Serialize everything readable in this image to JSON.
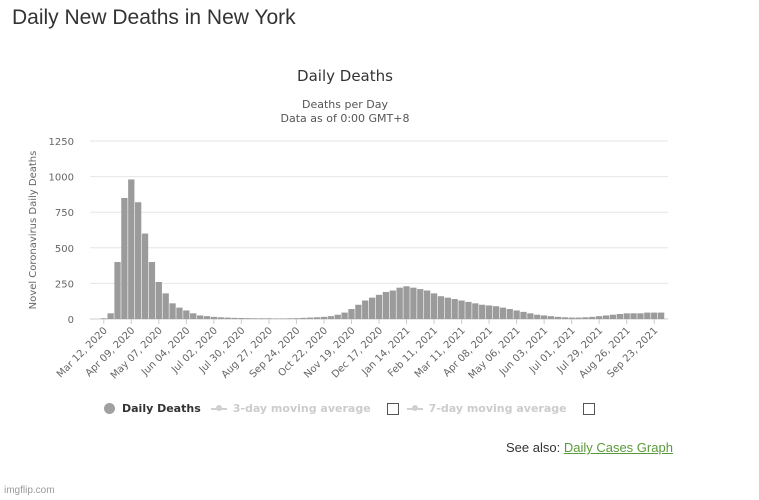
{
  "page": {
    "title": "Daily New Deaths in New York",
    "see_also_prefix": "See also:",
    "see_also_link": "Daily Cases Graph",
    "watermark": "imgflip.com"
  },
  "legend": {
    "daily": "Daily Deaths",
    "ma3": "3-day moving average",
    "ma7": "7-day moving average"
  },
  "colors": {
    "bar": "#9b9b9b",
    "grid": "#e6e6e6",
    "link": "#5b9a3a"
  },
  "chart_data": {
    "type": "bar",
    "title": "Daily Deaths",
    "subtitle": [
      "Deaths per Day",
      "Data as of 0:00 GMT+8"
    ],
    "xlabel": "",
    "ylabel": "Novel Coronavirus Daily Deaths",
    "ylim": [
      0,
      1250
    ],
    "yticks": [
      0,
      250,
      500,
      750,
      1000,
      1250
    ],
    "grid": true,
    "legend_position": "bottom",
    "xticks": [
      "Mar 12, 2020",
      "Apr 09, 2020",
      "May 07, 2020",
      "Jun 04, 2020",
      "Jul 02, 2020",
      "Jul 30, 2020",
      "Aug 27, 2020",
      "Sep 24, 2020",
      "Oct 22, 2020",
      "Nov 19, 2020",
      "Dec 17, 2020",
      "Jan 14, 2021",
      "Feb 11, 2021",
      "Mar 11, 2021",
      "Apr 08, 2021",
      "May 06, 2021",
      "Jun 03, 2021",
      "Jul 01, 2021",
      "Jul 29, 2021",
      "Aug 26, 2021",
      "Sep 23, 2021"
    ],
    "series": [
      {
        "name": "Daily Deaths",
        "x": [
          "Mar 05, 2020",
          "Mar 12, 2020",
          "Mar 19, 2020",
          "Mar 26, 2020",
          "Apr 02, 2020",
          "Apr 09, 2020",
          "Apr 16, 2020",
          "Apr 23, 2020",
          "Apr 30, 2020",
          "May 07, 2020",
          "May 14, 2020",
          "May 21, 2020",
          "May 28, 2020",
          "Jun 04, 2020",
          "Jun 11, 2020",
          "Jun 18, 2020",
          "Jun 25, 2020",
          "Jul 02, 2020",
          "Jul 09, 2020",
          "Jul 16, 2020",
          "Jul 23, 2020",
          "Jul 30, 2020",
          "Aug 06, 2020",
          "Aug 13, 2020",
          "Aug 20, 2020",
          "Aug 27, 2020",
          "Sep 03, 2020",
          "Sep 10, 2020",
          "Sep 17, 2020",
          "Sep 24, 2020",
          "Oct 01, 2020",
          "Oct 08, 2020",
          "Oct 15, 2020",
          "Oct 22, 2020",
          "Oct 29, 2020",
          "Nov 05, 2020",
          "Nov 12, 2020",
          "Nov 19, 2020",
          "Nov 26, 2020",
          "Dec 03, 2020",
          "Dec 10, 2020",
          "Dec 17, 2020",
          "Dec 24, 2020",
          "Dec 31, 2020",
          "Jan 07, 2021",
          "Jan 14, 2021",
          "Jan 21, 2021",
          "Jan 28, 2021",
          "Feb 04, 2021",
          "Feb 11, 2021",
          "Feb 18, 2021",
          "Feb 25, 2021",
          "Mar 04, 2021",
          "Mar 11, 2021",
          "Mar 18, 2021",
          "Mar 25, 2021",
          "Apr 01, 2021",
          "Apr 08, 2021",
          "Apr 15, 2021",
          "Apr 22, 2021",
          "Apr 29, 2021",
          "May 06, 2021",
          "May 13, 2021",
          "May 20, 2021",
          "May 27, 2021",
          "Jun 03, 2021",
          "Jun 10, 2021",
          "Jun 17, 2021",
          "Jun 24, 2021",
          "Jul 01, 2021",
          "Jul 08, 2021",
          "Jul 15, 2021",
          "Jul 22, 2021",
          "Jul 29, 2021",
          "Aug 05, 2021",
          "Aug 12, 2021",
          "Aug 19, 2021",
          "Aug 26, 2021",
          "Sep 02, 2021",
          "Sep 09, 2021",
          "Sep 16, 2021",
          "Sep 23, 2021",
          "Sep 30, 2021"
        ],
        "values": [
          0,
          5,
          40,
          400,
          850,
          980,
          820,
          600,
          400,
          260,
          180,
          110,
          80,
          60,
          40,
          25,
          20,
          15,
          12,
          10,
          8,
          7,
          6,
          5,
          5,
          5,
          4,
          4,
          5,
          6,
          8,
          10,
          12,
          15,
          20,
          30,
          45,
          70,
          100,
          130,
          150,
          170,
          190,
          200,
          220,
          230,
          220,
          210,
          200,
          180,
          160,
          150,
          140,
          130,
          120,
          110,
          100,
          95,
          90,
          80,
          70,
          60,
          50,
          40,
          30,
          25,
          20,
          15,
          12,
          10,
          10,
          12,
          15,
          20,
          25,
          30,
          35,
          40,
          40,
          40,
          45,
          45,
          45
        ]
      }
    ]
  }
}
